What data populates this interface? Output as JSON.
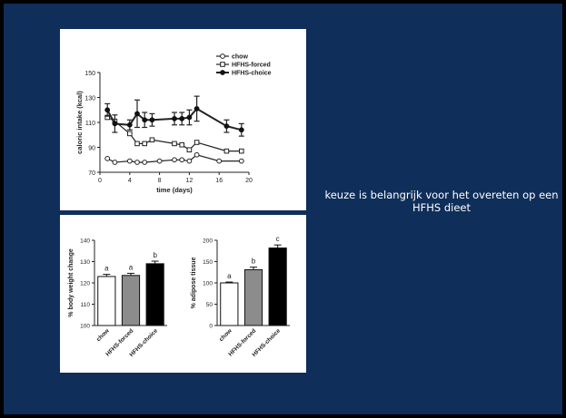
{
  "caption": "keuze is belangrijk voor het overeten op een HFHS dieet",
  "chart_data": [
    {
      "type": "line",
      "xlabel": "time (days)",
      "ylabel": "caloric intake (kcal)",
      "xlim": [
        0,
        20
      ],
      "ylim": [
        70,
        150
      ],
      "xticks": [
        "0",
        "4",
        "8",
        "12",
        "16",
        "20"
      ],
      "yticks": [
        "70",
        "90",
        "110",
        "130",
        "150"
      ],
      "legend_position": "top-right",
      "series": [
        {
          "name": "chow",
          "marker": "open-circle",
          "x": [
            1,
            2,
            4,
            5,
            6,
            8,
            10,
            11,
            12,
            13,
            16,
            19
          ],
          "y": [
            81,
            78,
            79,
            78,
            78,
            79,
            80,
            80,
            79,
            84,
            79,
            79
          ]
        },
        {
          "name": "HFHS-forced",
          "marker": "open-square",
          "x": [
            1,
            2,
            4,
            5,
            6,
            7,
            10,
            11,
            12,
            13,
            17,
            19
          ],
          "y": [
            114,
            111,
            101,
            93,
            93,
            96,
            93,
            92,
            88,
            94,
            87,
            87
          ]
        },
        {
          "name": "HFHS-choice",
          "marker": "filled-circle",
          "x": [
            1,
            2,
            4,
            5,
            6,
            7,
            10,
            11,
            12,
            13,
            17,
            19
          ],
          "y": [
            120,
            109,
            108,
            117,
            112,
            112,
            113,
            113,
            114,
            121,
            107,
            104
          ],
          "err": [
            5,
            7,
            4,
            11,
            6,
            5,
            5,
            5,
            6,
            10,
            5,
            5
          ]
        }
      ]
    },
    {
      "type": "bar",
      "ylabel": "% body weight change",
      "ylim": [
        100,
        140
      ],
      "yticks": [
        "100",
        "110",
        "120",
        "130",
        "140"
      ],
      "categories": [
        "chow",
        "HFHS-forced",
        "HFHS-choice"
      ],
      "values": [
        123,
        123.5,
        129
      ],
      "errors": [
        1,
        1,
        1.2
      ],
      "bar_colors": [
        "#ffffff",
        "#8c8c8c",
        "#000000"
      ],
      "sig_labels": [
        "a",
        "a",
        "b"
      ]
    },
    {
      "type": "bar",
      "ylabel": "% adipose tissue",
      "ylim": [
        0,
        200
      ],
      "yticks": [
        "0",
        "50",
        "100",
        "150",
        "200"
      ],
      "categories": [
        "chow",
        "HFHS-forced",
        "HFHS-choice"
      ],
      "values": [
        100,
        131,
        182
      ],
      "errors": [
        2,
        6,
        7
      ],
      "bar_colors": [
        "#ffffff",
        "#8c8c8c",
        "#000000"
      ],
      "sig_labels": [
        "a",
        "b",
        "c"
      ]
    }
  ]
}
